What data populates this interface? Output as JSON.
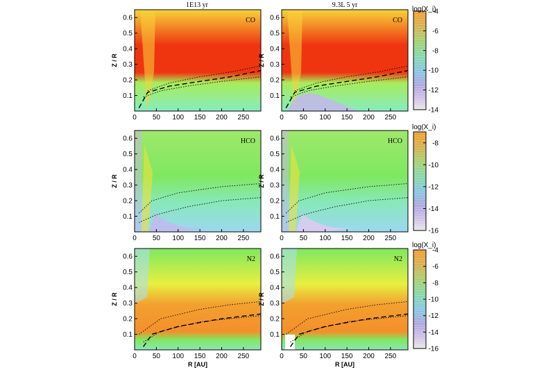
{
  "chart_data": {
    "type": "heatmap",
    "column_titles": [
      "1E13 yr",
      "9.3L 5 yr"
    ],
    "x_axis": {
      "label": "R [AU]",
      "ticks": [
        0,
        50,
        100,
        150,
        200,
        250
      ],
      "range": [
        0,
        290
      ]
    },
    "y_axis": {
      "label": "Z / R",
      "ticks": [
        "0.1",
        "0.2",
        "0.3",
        "0.4",
        "0.5",
        "0.6"
      ],
      "range": [
        0.0,
        0.65
      ]
    },
    "rows": [
      {
        "species": "CO",
        "colorbar": {
          "title": "log(X_i)",
          "ticks": [
            "-4",
            "-6",
            "-8",
            "-10",
            "-12",
            "-14"
          ],
          "range": [
            -14,
            -4
          ]
        },
        "panels": [
          {
            "label": "CO",
            "dominant_color": "#ef3510"
          },
          {
            "label": "CO",
            "dominant_color": "#ef3510"
          }
        ],
        "contour_dotted_upper": [
          [
            30,
            0.13
          ],
          [
            80,
            0.18
          ],
          [
            150,
            0.22
          ],
          [
            220,
            0.25
          ],
          [
            290,
            0.29
          ]
        ],
        "contour_dotted_lower": [
          [
            20,
            0.09
          ],
          [
            60,
            0.13
          ],
          [
            120,
            0.16
          ],
          [
            200,
            0.19
          ],
          [
            290,
            0.22
          ]
        ],
        "contour_dashed": [
          [
            10,
            0.02
          ],
          [
            30,
            0.12
          ],
          [
            80,
            0.16
          ],
          [
            150,
            0.19
          ],
          [
            220,
            0.22
          ],
          [
            290,
            0.26
          ]
        ]
      },
      {
        "species": "HCO",
        "colorbar": {
          "title": "log(X_i)",
          "ticks": [
            "-8",
            "-10",
            "-12",
            "-14",
            "-16"
          ],
          "range": [
            -16,
            -7
          ]
        },
        "panels": [
          {
            "label": "HCO",
            "dominant_color": "#7fe860"
          },
          {
            "label": "HCO",
            "dominant_color": "#7fe860"
          }
        ],
        "contour_dotted_upper": [
          [
            10,
            0.12
          ],
          [
            40,
            0.2
          ],
          [
            100,
            0.25
          ],
          [
            200,
            0.29
          ],
          [
            290,
            0.31
          ]
        ],
        "contour_dotted_lower": [
          [
            10,
            0.06
          ],
          [
            50,
            0.11
          ],
          [
            120,
            0.16
          ],
          [
            200,
            0.2
          ],
          [
            290,
            0.22
          ]
        ]
      },
      {
        "species": "N2",
        "colorbar": {
          "title": "log(X_i)",
          "ticks": [
            "-4",
            "-6",
            "-8",
            "-10",
            "-12",
            "-14",
            "-16"
          ],
          "range": [
            -16,
            -4
          ]
        },
        "panels": [
          {
            "label": "N2",
            "dominant_color": "#f39a2a"
          },
          {
            "label": "N2",
            "dominant_color": "#f39a2a"
          }
        ],
        "contour_dotted_upper": [
          [
            10,
            0.1
          ],
          [
            60,
            0.2
          ],
          [
            150,
            0.26
          ],
          [
            220,
            0.29
          ],
          [
            290,
            0.31
          ]
        ],
        "contour_dotted_lower": [
          [
            20,
            0.05
          ],
          [
            60,
            0.12
          ],
          [
            150,
            0.18
          ],
          [
            290,
            0.22
          ]
        ],
        "contour_dashed": [
          [
            20,
            0.02
          ],
          [
            40,
            0.1
          ],
          [
            100,
            0.15
          ],
          [
            200,
            0.2
          ],
          [
            290,
            0.23
          ]
        ]
      }
    ],
    "colormap": [
      "#ffffff",
      "#c8b4f0",
      "#8fe0e8",
      "#7fe860",
      "#ffff40",
      "#f3a030",
      "#ef3510"
    ],
    "grid": false,
    "legend": "colorbar per row (right)"
  }
}
